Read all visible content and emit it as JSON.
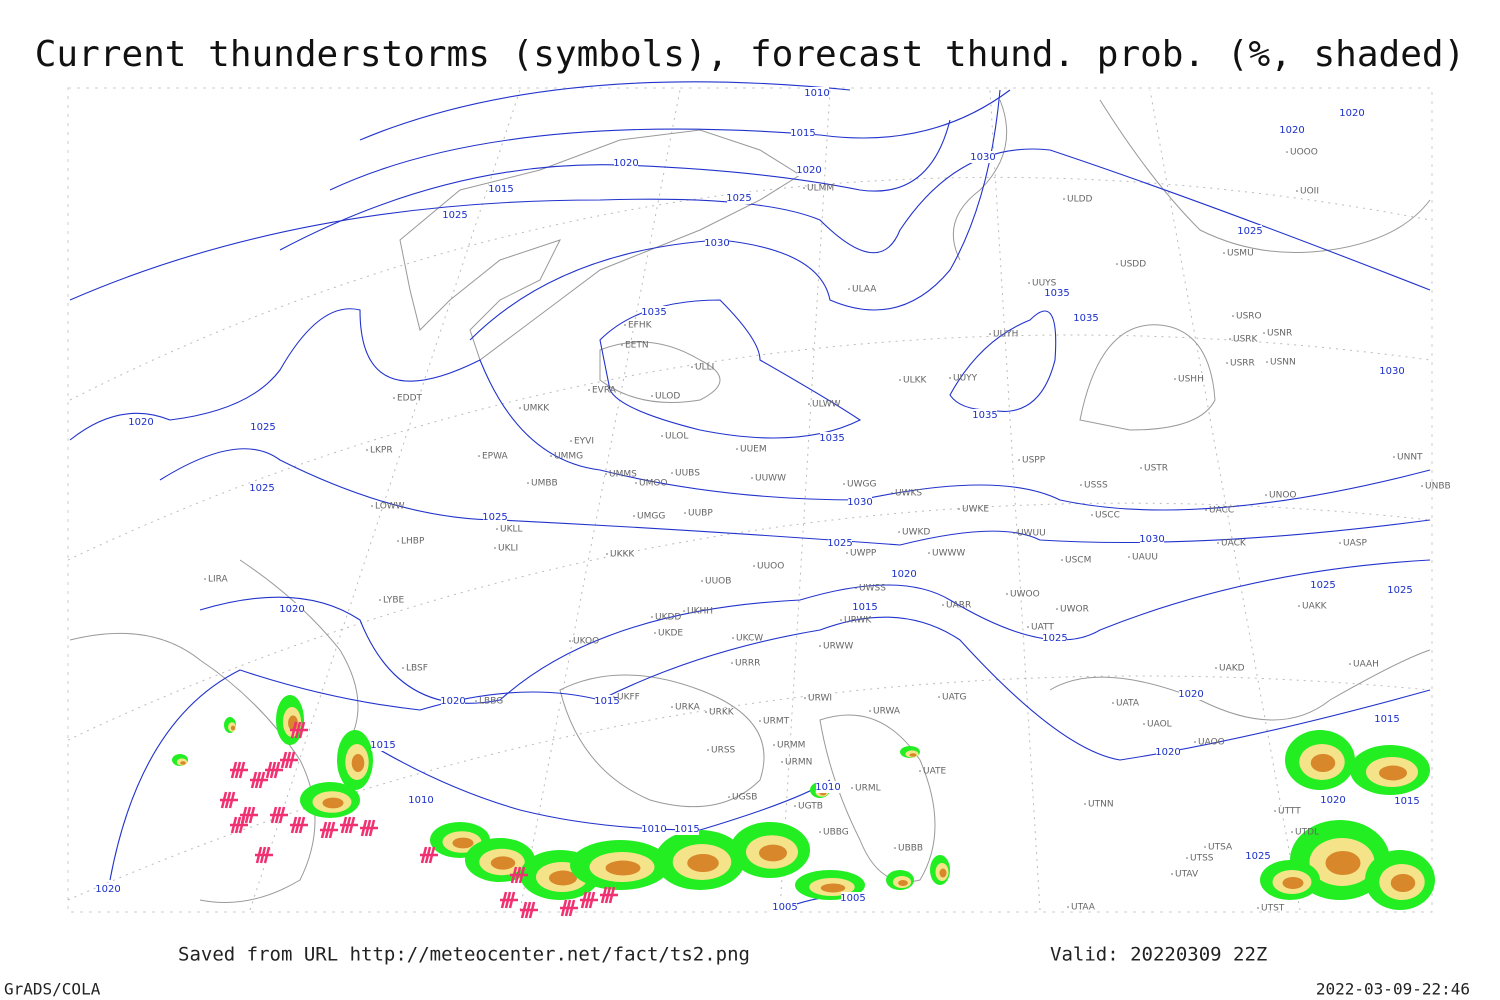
{
  "title": "Current thunderstorms (symbols), forecast thund. prob. (%, shaded)",
  "footer": {
    "source": "Saved from URL http://meteocenter.net/fact/ts2.png",
    "valid": "Valid: 20220309 22Z",
    "software": "GrADS/COLA",
    "timestamp": "2022-03-09-22:46"
  },
  "isobar_labels": [
    "1010",
    "1015",
    "1020",
    "1020",
    "1015",
    "1025",
    "1025",
    "1030",
    "1035",
    "1030",
    "1025",
    "1020",
    "1020",
    "1035",
    "1035",
    "1035",
    "1030",
    "1035",
    "1020",
    "1025",
    "1025",
    "1030",
    "1025",
    "1025",
    "1030",
    "1020",
    "1015",
    "1025",
    "1025",
    "1025",
    "1020",
    "1020",
    "1015",
    "1015",
    "1010",
    "1010",
    "1015",
    "1010",
    "1020",
    "1020",
    "1015",
    "1020",
    "1015",
    "1025",
    "1005",
    "1005",
    "1020"
  ],
  "stations": [
    "EFHK",
    "EETN",
    "EVRA",
    "ULLI",
    "ULOD",
    "ULOL",
    "UUEM",
    "ULWW",
    "ULKK",
    "UUYY",
    "UUYH",
    "UUYS",
    "ULAA",
    "ULDD",
    "ULMM",
    "USDD",
    "USMU",
    "UOOO",
    "UOII",
    "USRO",
    "USRK",
    "USNR",
    "USRR",
    "USNN",
    "USHH",
    "USPP",
    "USTR",
    "USSS",
    "USCC",
    "UNOO",
    "UACC",
    "UACK",
    "UASP",
    "UNNT",
    "UNBB",
    "UWKE",
    "UWKS",
    "UWGG",
    "UUWW",
    "UUBS",
    "UMMS",
    "UMOO",
    "UMBB",
    "UMMG",
    "EYVI",
    "UMKK",
    "EPWA",
    "LKPR",
    "EDDT",
    "LOWW",
    "LHBP",
    "LIRA",
    "LYBE",
    "LBSF",
    "LBBG",
    "UKLL",
    "UKLI",
    "UKKK",
    "UUBP",
    "UMGG",
    "UUOO",
    "UUOB",
    "UKHH",
    "UKDD",
    "UKDE",
    "UKCW",
    "UKOO",
    "UKFF",
    "URRR",
    "URKA",
    "URKK",
    "URWI",
    "URMT",
    "URMM",
    "URMN",
    "URSS",
    "URWA",
    "UATG",
    "UATE",
    "URML",
    "UGSB",
    "UGTB",
    "UBBG",
    "UBBB",
    "UAAH",
    "UAKD",
    "UATA",
    "UAOL",
    "UAOO",
    "UTNN",
    "UTSA",
    "UTSS",
    "UTAV",
    "UTAA",
    "UTST",
    "UTTT",
    "UTDL",
    "UWWW",
    "UWPP",
    "UWSS",
    "UWOO",
    "UWOR",
    "UATT",
    "UARR",
    "UAKK",
    "UAUU",
    "USCM",
    "UWUU",
    "UWKD",
    "URWW",
    "URWK"
  ]
}
